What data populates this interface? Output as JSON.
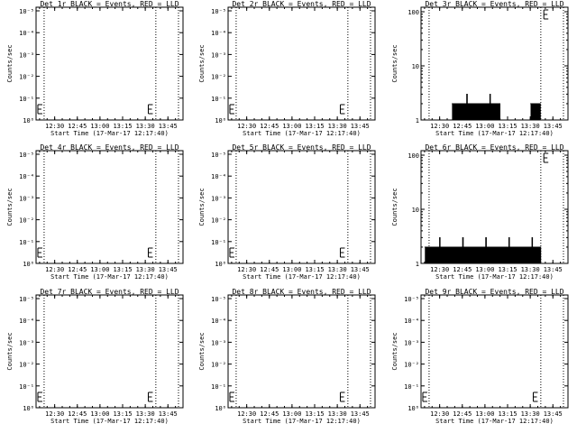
{
  "chart_data": [
    {
      "type": "line",
      "title": "Det 1r BLACK = Events, RED = LLD",
      "xlabel": "Start Time (17-Mar-17 12:17:40)",
      "ylabel": "Counts/sec",
      "yscale": "log",
      "y_ticks": [
        "10⁰",
        "10⁻¹",
        "10⁻²",
        "10⁻³",
        "10⁻⁴",
        "10⁻⁵"
      ],
      "x_ticks": [
        "12:30",
        "12:45",
        "13:00",
        "13:15",
        "13:30",
        "13:45"
      ],
      "x_range": [
        "12:17:40",
        "13:55"
      ],
      "vlines": [
        "12:23",
        "13:37",
        "13:52"
      ],
      "series": []
    },
    {
      "type": "line",
      "title": "Det 2r BLACK = Events, RED = LLD",
      "xlabel": "Start Time (17-Mar-17 12:17:40)",
      "ylabel": "Counts/sec",
      "yscale": "log",
      "y_ticks": [
        "10⁰",
        "10⁻¹",
        "10⁻²",
        "10⁻³",
        "10⁻⁴",
        "10⁻⁵"
      ],
      "x_ticks": [
        "12:30",
        "12:45",
        "13:00",
        "13:15",
        "13:30",
        "13:45"
      ],
      "x_range": [
        "12:17:40",
        "13:55"
      ],
      "vlines": [
        "12:23",
        "13:37",
        "13:52"
      ],
      "series": []
    },
    {
      "type": "line",
      "title": "Det 3r BLACK = Events, RED = LLD",
      "xlabel": "Start Time (17-Mar-17 12:17:40)",
      "ylabel": "Counts/sec",
      "yscale": "log",
      "y_ticks": [
        "1",
        "10",
        "100"
      ],
      "x_ticks": [
        "12:30",
        "12:45",
        "13:00",
        "13:15",
        "13:30",
        "13:45"
      ],
      "x_range": [
        "12:17:40",
        "13:55"
      ],
      "vlines": [
        "12:23",
        "13:37",
        "13:52"
      ],
      "series": [
        {
          "values": [
            [
              12.6,
              2
            ],
            [
              12.9,
              1
            ],
            [
              13.2,
              2
            ],
            [
              13.5,
              1
            ],
            [
              13.8,
              2
            ],
            [
              14.1,
              1
            ],
            [
              14.4,
              2
            ],
            [
              14.7,
              1
            ],
            [
              15.0,
              2
            ],
            [
              15.3,
              1
            ],
            [
              15.6,
              2
            ],
            [
              15.9,
              1
            ],
            [
              16.2,
              2
            ],
            [
              16.5,
              1
            ],
            [
              16.8,
              2
            ],
            [
              17.1,
              1
            ],
            [
              17.4,
              2
            ],
            [
              17.7,
              1
            ],
            [
              18.0,
              2
            ],
            [
              18.3,
              1
            ],
            [
              18.6,
              2
            ],
            [
              18.9,
              1
            ],
            [
              19.2,
              2
            ],
            [
              19.5,
              1
            ],
            [
              19.8,
              2
            ],
            [
              20.1,
              1
            ],
            [
              20.4,
              2
            ],
            [
              20.7,
              1
            ],
            [
              21.0,
              2
            ],
            [
              21.3,
              1
            ],
            [
              21.6,
              2
            ],
            [
              21.9,
              1
            ],
            [
              22.2,
              2
            ],
            [
              22.5,
              1
            ],
            [
              22.8,
              2
            ],
            [
              23.1,
              1
            ],
            [
              23.4,
              2
            ],
            [
              23.7,
              1
            ],
            [
              24.0,
              2
            ],
            [
              24.3,
              1
            ],
            [
              24.6,
              2
            ],
            [
              24.9,
              1
            ],
            [
              25.2,
              2
            ],
            [
              25.5,
              1
            ],
            [
              25.8,
              2
            ],
            [
              26.1,
              1
            ],
            [
              26.4,
              2
            ],
            [
              26.7,
              1
            ],
            [
              27.0,
              2
            ],
            [
              27.3,
              1
            ],
            [
              27.6,
              2
            ],
            [
              27.9,
              1
            ],
            [
              28.2,
              2
            ],
            [
              28.5,
              1
            ],
            [
              28.8,
              2
            ],
            [
              29.1,
              1
            ],
            [
              29.4,
              2
            ],
            [
              29.7,
              1
            ],
            [
              30.0,
              2
            ],
            [
              30.3,
              1
            ],
            [
              30.6,
              2
            ],
            [
              30.9,
              1
            ],
            [
              31.2,
              2
            ],
            [
              31.5,
              1
            ],
            [
              31.8,
              2
            ],
            [
              32.1,
              1
            ],
            [
              32.4,
              2
            ],
            [
              32.7,
              1
            ],
            [
              33.0,
              2
            ],
            [
              33.3,
              1
            ],
            [
              33.6,
              2
            ],
            [
              33.9,
              1
            ],
            [
              34.2,
              2
            ],
            [
              34.5,
              1
            ],
            [
              34.8,
              2
            ],
            [
              35.1,
              1
            ],
            [
              35.4,
              2
            ],
            [
              35.7,
              1
            ],
            [
              36.0,
              2
            ],
            [
              36.3,
              1
            ],
            [
              36.6,
              2
            ],
            [
              36.9,
              1
            ],
            [
              37.2,
              2
            ],
            [
              37.5,
              1
            ],
            [
              37.8,
              2
            ],
            [
              38.1,
              1
            ],
            [
              38.4,
              2
            ],
            [
              38.7,
              1
            ],
            [
              39.0,
              2
            ],
            [
              39.3,
              1
            ],
            [
              39.6,
              2
            ],
            [
              39.9,
              1
            ],
            [
              40.2,
              2
            ],
            [
              40.5,
              1
            ],
            [
              40.8,
              2
            ],
            [
              41.1,
              1
            ],
            [
              41.4,
              3
            ],
            [
              41.7,
              1
            ],
            [
              42.0,
              2
            ],
            [
              42.3,
              1
            ],
            [
              42.6,
              2
            ],
            [
              42.9,
              1
            ],
            [
              43.2,
              2
            ],
            [
              43.5,
              1
            ],
            [
              43.8,
              2
            ],
            [
              44.1,
              1
            ],
            [
              44.4,
              2
            ],
            [
              44.7,
              1
            ],
            [
              45.0,
              2
            ],
            [
              45.3,
              1
            ]
          ],
          "note_segments": [
            [
              0.0,
              0.0
            ]
          ]
        }
      ],
      "active_ranges": [
        [
          "12:38",
          "13:10"
        ],
        [
          "13:30",
          "13:37"
        ]
      ]
    },
    {
      "type": "line",
      "title": "Det 4r BLACK = Events, RED = LLD",
      "xlabel": "Start Time (17-Mar-17 12:17:40)",
      "ylabel": "Counts/sec",
      "yscale": "log",
      "y_ticks": [
        "10⁰",
        "10⁻¹",
        "10⁻²",
        "10⁻³",
        "10⁻⁴",
        "10⁻⁵"
      ],
      "x_ticks": [
        "12:30",
        "12:45",
        "13:00",
        "13:15",
        "13:30",
        "13:45"
      ],
      "x_range": [
        "12:17:40",
        "13:55"
      ],
      "vlines": [
        "12:23",
        "13:37",
        "13:52"
      ],
      "series": []
    },
    {
      "type": "line",
      "title": "Det 5r BLACK = Events, RED = LLD",
      "xlabel": "Start Time (17-Mar-17 12:17:40)",
      "ylabel": "Counts/sec",
      "yscale": "log",
      "y_ticks": [
        "10⁰",
        "10⁻¹",
        "10⁻²",
        "10⁻³",
        "10⁻⁴",
        "10⁻⁵"
      ],
      "x_ticks": [
        "12:30",
        "12:45",
        "13:00",
        "13:15",
        "13:30",
        "13:45"
      ],
      "x_range": [
        "12:17:40",
        "13:55"
      ],
      "vlines": [
        "12:23",
        "13:37",
        "13:52"
      ],
      "series": []
    },
    {
      "type": "line",
      "title": "Det 6r BLACK = Events, RED = LLD",
      "xlabel": "Start Time (17-Mar-17 12:17:40)",
      "ylabel": "Counts/sec",
      "yscale": "log",
      "y_ticks": [
        "1",
        "10",
        "100"
      ],
      "x_ticks": [
        "12:30",
        "12:45",
        "13:00",
        "13:15",
        "13:30",
        "13:45"
      ],
      "x_range": [
        "12:17:40",
        "13:55"
      ],
      "vlines": [
        "12:23",
        "13:37",
        "13:52"
      ],
      "series": [],
      "active_ranges": [
        [
          "12:20",
          "13:37"
        ]
      ]
    },
    {
      "type": "line",
      "title": "Det 7r BLACK = Events, RED = LLD",
      "xlabel": "Start Time (17-Mar-17 12:17:40)",
      "ylabel": "Counts/sec",
      "yscale": "log",
      "y_ticks": [
        "10⁰",
        "10⁻¹",
        "10⁻²",
        "10⁻³",
        "10⁻⁴",
        "10⁻⁵"
      ],
      "x_ticks": [
        "12:30",
        "12:45",
        "13:00",
        "13:15",
        "13:30",
        "13:45"
      ],
      "x_range": [
        "12:17:40",
        "13:55"
      ],
      "vlines": [
        "12:23",
        "13:37",
        "13:52"
      ],
      "series": []
    },
    {
      "type": "line",
      "title": "Det 8r BLACK = Events, RED = LLD",
      "xlabel": "Start Time (17-Mar-17 12:17:40)",
      "ylabel": "Counts/sec",
      "yscale": "log",
      "y_ticks": [
        "10⁰",
        "10⁻¹",
        "10⁻²",
        "10⁻³",
        "10⁻⁴",
        "10⁻⁵"
      ],
      "x_ticks": [
        "12:30",
        "12:45",
        "13:00",
        "13:15",
        "13:30",
        "13:45"
      ],
      "x_range": [
        "12:17:40",
        "13:55"
      ],
      "vlines": [
        "12:23",
        "13:37",
        "13:52"
      ],
      "series": []
    },
    {
      "type": "line",
      "title": "Det 9r BLACK = Events, RED = LLD",
      "xlabel": "Start Time (17-Mar-17 12:17:40)",
      "ylabel": "Counts/sec",
      "yscale": "log",
      "y_ticks": [
        "10⁰",
        "10⁻¹",
        "10⁻²",
        "10⁻³",
        "10⁻⁴",
        "10⁻⁵"
      ],
      "x_ticks": [
        "12:30",
        "12:45",
        "13:00",
        "13:15",
        "13:30",
        "13:45"
      ],
      "x_range": [
        "12:17:40",
        "13:55"
      ],
      "vlines": [
        "12:23",
        "13:37",
        "13:52"
      ],
      "series": []
    }
  ]
}
